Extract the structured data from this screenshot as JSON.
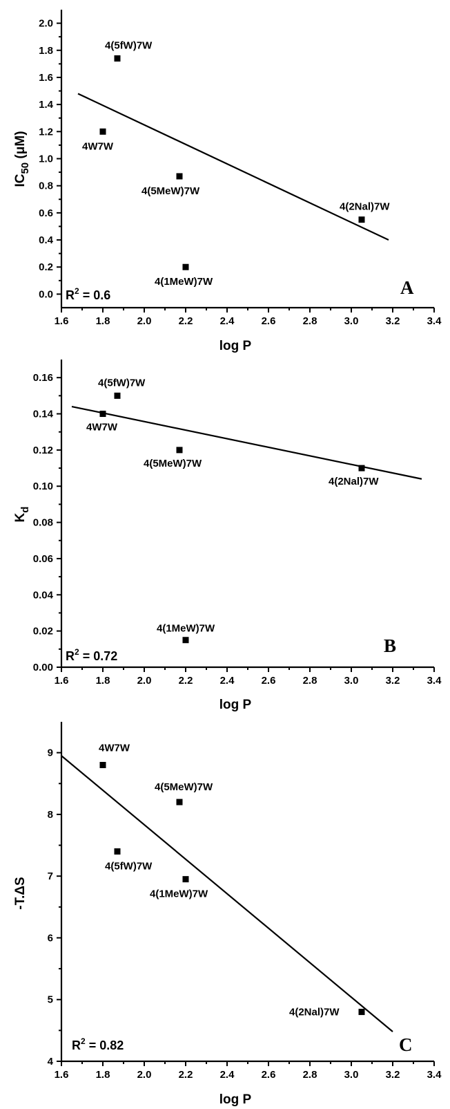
{
  "chart_data": [
    {
      "type": "scatter",
      "panel_label": "A",
      "xlabel": "log P",
      "ylabel_main": "IC",
      "ylabel_sub": "50",
      "ylabel_unit": "(μM)",
      "xlim": [
        1.6,
        3.4
      ],
      "ylim": [
        -0.1,
        2.1
      ],
      "xticks": [
        1.6,
        1.8,
        2.0,
        2.2,
        2.4,
        2.6,
        2.8,
        3.0,
        3.2,
        3.4
      ],
      "yticks": [
        0.0,
        0.2,
        0.4,
        0.6,
        0.8,
        1.0,
        1.2,
        1.4,
        1.6,
        1.8,
        2.0
      ],
      "xtick_labels": [
        "1.6",
        "1.8",
        "2.0",
        "2.2",
        "2.4",
        "2.6",
        "2.8",
        "3.0",
        "3.2",
        "3.4"
      ],
      "ytick_labels": [
        "0.0",
        "0.2",
        "0.4",
        "0.6",
        "0.8",
        "1.0",
        "1.2",
        "1.4",
        "1.6",
        "1.8",
        "2.0"
      ],
      "r2_prefix": "R",
      "r2_exp": "2",
      "r2_value": " = 0.6",
      "points": [
        {
          "label": "4(5fW)7W",
          "x": 1.87,
          "y": 1.74
        },
        {
          "label": "4W7W",
          "x": 1.8,
          "y": 1.2
        },
        {
          "label": "4(5MeW)7W",
          "x": 2.17,
          "y": 0.87
        },
        {
          "label": "4(2Nal)7W",
          "x": 3.05,
          "y": 0.55
        },
        {
          "label": "4(1MeW)7W",
          "x": 2.2,
          "y": 0.2
        }
      ],
      "fit": {
        "x": [
          1.68,
          3.18
        ],
        "y": [
          1.48,
          0.4
        ]
      }
    },
    {
      "type": "scatter",
      "panel_label": "B",
      "xlabel": "log P",
      "ylabel_main": "K",
      "ylabel_sub": "d",
      "ylabel_unit": "",
      "xlim": [
        1.6,
        3.4
      ],
      "ylim": [
        0.0,
        0.17
      ],
      "xticks": [
        1.6,
        1.8,
        2.0,
        2.2,
        2.4,
        2.6,
        2.8,
        3.0,
        3.2,
        3.4
      ],
      "yticks": [
        0.0,
        0.02,
        0.04,
        0.06,
        0.08,
        0.1,
        0.12,
        0.14,
        0.16
      ],
      "xtick_labels": [
        "1.6",
        "1.8",
        "2.0",
        "2.2",
        "2.4",
        "2.6",
        "2.8",
        "3.0",
        "3.2",
        "3.4"
      ],
      "ytick_labels": [
        "0.00",
        "0.02",
        "0.04",
        "0.06",
        "0.08",
        "0.10",
        "0.12",
        "0.14",
        "0.16"
      ],
      "r2_prefix": "R",
      "r2_exp": "2",
      "r2_value": " = 0.72",
      "points": [
        {
          "label": "4(5fW)7W",
          "x": 1.87,
          "y": 0.15
        },
        {
          "label": "4W7W",
          "x": 1.8,
          "y": 0.14
        },
        {
          "label": "4(5MeW)7W",
          "x": 2.17,
          "y": 0.12
        },
        {
          "label": "4(2Nal)7W",
          "x": 3.05,
          "y": 0.11
        },
        {
          "label": "4(1MeW)7W",
          "x": 2.2,
          "y": 0.015
        }
      ],
      "fit": {
        "x": [
          1.65,
          3.34
        ],
        "y": [
          0.144,
          0.104
        ]
      }
    },
    {
      "type": "scatter",
      "panel_label": "C",
      "xlabel": "log P",
      "ylabel_main": "-T.ΔS",
      "ylabel_sub": "",
      "ylabel_unit": "",
      "xlim": [
        1.6,
        3.4
      ],
      "ylim": [
        4,
        9.5
      ],
      "xticks": [
        1.6,
        1.8,
        2.0,
        2.2,
        2.4,
        2.6,
        2.8,
        3.0,
        3.2,
        3.4
      ],
      "yticks": [
        4,
        5,
        6,
        7,
        8,
        9
      ],
      "xtick_labels": [
        "1.6",
        "1.8",
        "2.0",
        "2.2",
        "2.4",
        "2.6",
        "2.8",
        "3.0",
        "3.2",
        "3.4"
      ],
      "ytick_labels": [
        "4",
        "5",
        "6",
        "7",
        "8",
        "9"
      ],
      "r2_prefix": "R",
      "r2_exp": "2",
      "r2_value": " = 0.82",
      "points": [
        {
          "label": "4W7W",
          "x": 1.8,
          "y": 8.8
        },
        {
          "label": "4(5MeW)7W",
          "x": 2.17,
          "y": 8.2
        },
        {
          "label": "4(5fW)7W",
          "x": 1.87,
          "y": 7.4
        },
        {
          "label": "4(1MeW)7W",
          "x": 2.2,
          "y": 6.95
        },
        {
          "label": "4(2Nal)7W",
          "x": 3.05,
          "y": 4.8
        }
      ],
      "fit": {
        "x": [
          1.6,
          3.2
        ],
        "y": [
          8.95,
          4.48
        ]
      }
    }
  ]
}
